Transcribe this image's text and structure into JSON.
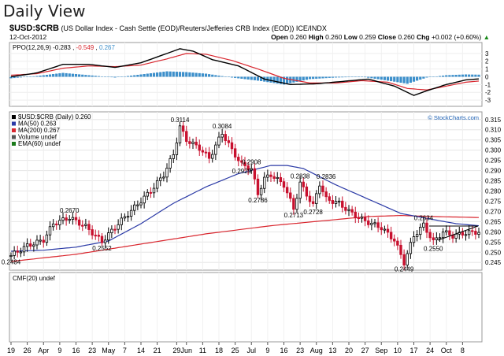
{
  "header": {
    "view_title": "Daily View",
    "symbol": "$USD:$CRB",
    "description": "(US Dollar Index - Cash Settle (EOD)/Reuters/Jefferies CRB Index (EOD)) ICE/INDX",
    "date": "12-Oct-2012",
    "quote": {
      "open_label": "Open",
      "open": "0.260",
      "high_label": "High",
      "high": "0.260",
      "low_label": "Low",
      "low": "0.259",
      "close_label": "Close",
      "close": "0.260",
      "chg_label": "Chg",
      "chg": "+0.002 (+0.60%)",
      "chg_arrow": "▲"
    },
    "credit": "© StockCharts.com"
  },
  "ppo_panel": {
    "label_prefix": "PPO(12,26,9)",
    "v1": "-0.283",
    "v2": "-0.549",
    "v3": "0.267",
    "colors": {
      "ppo": "#000000",
      "signal": "#d9262e",
      "hist": "#3c8fcb"
    }
  },
  "cmf_panel": {
    "label": "CMF(20) undef"
  },
  "legend": [
    {
      "text": "$USD:$CRB (Daily) 0.260",
      "color": "#000000"
    },
    {
      "text": "MA(50) 0.263",
      "color": "#2b3aa6"
    },
    {
      "text": "MA(200) 0.267",
      "color": "#d9262e"
    },
    {
      "text": "Volume undef",
      "color": "#555555"
    },
    {
      "text": "EMA(60) undef",
      "color": "#1a7a1a"
    }
  ],
  "chart_data": {
    "type": "line",
    "title": "Daily View",
    "ylim": [
      0.242,
      0.318
    ],
    "y_ticks": [
      0.245,
      0.25,
      0.255,
      0.26,
      0.265,
      0.27,
      0.275,
      0.28,
      0.285,
      0.29,
      0.295,
      0.3,
      0.305,
      0.31,
      0.315
    ],
    "x_tick_labels": [
      "19",
      "26",
      "Apr",
      "9",
      "16",
      "23",
      "May",
      "7",
      "14",
      "21",
      "29",
      "Jun",
      "11",
      "18",
      "25",
      "Jul",
      "9",
      "16",
      "23",
      "Aug",
      "13",
      "20",
      "27",
      "Sep",
      "10",
      "17",
      "24",
      "Oct",
      "8"
    ],
    "x_tick_positions": [
      0,
      5,
      10,
      15,
      20,
      25,
      30,
      35,
      40,
      45,
      51,
      54,
      59,
      64,
      69,
      74,
      79,
      84,
      89,
      94,
      99,
      104,
      109,
      114,
      119,
      124,
      129,
      134,
      139
    ],
    "n_bars": 145,
    "series": [
      {
        "name": "$USD:$CRB (Daily) 0.260",
        "color": "#000000",
        "x": [
          0,
          5,
          10,
          13,
          18,
          23,
          28,
          33,
          38,
          43,
          47,
          50,
          52,
          54,
          58,
          61,
          65,
          68,
          71,
          74,
          76,
          78,
          80,
          84,
          87,
          89,
          93,
          95,
          97,
          101,
          104,
          108,
          111,
          114,
          118,
          121,
          124,
          127,
          130,
          133,
          136,
          140,
          144
        ],
        "values": [
          0.2484,
          0.2532,
          0.256,
          0.264,
          0.267,
          0.2625,
          0.2552,
          0.264,
          0.272,
          0.28,
          0.288,
          0.298,
          0.3114,
          0.305,
          0.301,
          0.296,
          0.3084,
          0.3,
          0.2929,
          0.2908,
          0.2786,
          0.286,
          0.288,
          0.283,
          0.2713,
          0.2838,
          0.2728,
          0.2836,
          0.276,
          0.274,
          0.27,
          0.266,
          0.264,
          0.262,
          0.256,
          0.2449,
          0.258,
          0.2634,
          0.255,
          0.26,
          0.258,
          0.2595,
          0.26
        ]
      },
      {
        "name": "MA(50) 0.263",
        "color": "#2b3aa6",
        "x": [
          0,
          10,
          20,
          30,
          40,
          50,
          60,
          70,
          80,
          85,
          90,
          100,
          110,
          120,
          130,
          137,
          144
        ],
        "values": [
          0.2505,
          0.251,
          0.2525,
          0.2555,
          0.264,
          0.274,
          0.282,
          0.2885,
          0.2925,
          0.2925,
          0.291,
          0.283,
          0.276,
          0.269,
          0.266,
          0.264,
          0.263
        ]
      },
      {
        "name": "MA(200) 0.267",
        "color": "#d9262e",
        "x": [
          0,
          20,
          40,
          60,
          80,
          100,
          110,
          120,
          130,
          144
        ],
        "values": [
          0.2455,
          0.249,
          0.254,
          0.259,
          0.263,
          0.266,
          0.2675,
          0.268,
          0.2675,
          0.267
        ]
      }
    ],
    "annotations": [
      {
        "text": "0.2484",
        "x": 0,
        "y": 0.2484
      },
      {
        "text": "0.2670",
        "x": 18,
        "y": 0.267
      },
      {
        "text": "0.2552",
        "x": 28,
        "y": 0.2552
      },
      {
        "text": "0.3114",
        "x": 52,
        "y": 0.3114
      },
      {
        "text": "0.3084",
        "x": 65,
        "y": 0.3084
      },
      {
        "text": "0.2929",
        "x": 71,
        "y": 0.2929
      },
      {
        "text": "0.2908",
        "x": 74,
        "y": 0.2908
      },
      {
        "text": "0.2786",
        "x": 76,
        "y": 0.2786
      },
      {
        "text": "0.2838",
        "x": 89,
        "y": 0.2838
      },
      {
        "text": "0.2836",
        "x": 97,
        "y": 0.2836
      },
      {
        "text": "0.2713",
        "x": 87,
        "y": 0.2713
      },
      {
        "text": "0.2728",
        "x": 93,
        "y": 0.2728
      },
      {
        "text": "0.2449",
        "x": 121,
        "y": 0.2449
      },
      {
        "text": "0.2634",
        "x": 127,
        "y": 0.2634
      },
      {
        "text": "0.2550",
        "x": 130,
        "y": 0.255
      }
    ]
  },
  "ppo_chart_data": {
    "type": "line",
    "ylim": [
      -3.5,
      4
    ],
    "y_ticks": [
      3,
      2,
      1,
      0,
      -1,
      -2,
      -3
    ],
    "series": [
      {
        "name": "PPO",
        "x": [
          0,
          8,
          16,
          24,
          32,
          40,
          48,
          52,
          56,
          62,
          70,
          78,
          86,
          94,
          102,
          110,
          118,
          124,
          128,
          134,
          140,
          144
        ],
        "values": [
          0.0,
          0.5,
          1.6,
          1.6,
          1.2,
          1.8,
          3.0,
          3.6,
          3.3,
          2.2,
          1.4,
          -0.3,
          -1.0,
          -0.9,
          -0.6,
          -0.3,
          -1.2,
          -2.4,
          -1.8,
          -1.0,
          -0.4,
          -0.28
        ]
      },
      {
        "name": "Signal",
        "x": [
          0,
          8,
          16,
          24,
          32,
          40,
          48,
          54,
          60,
          68,
          76,
          84,
          92,
          100,
          108,
          116,
          122,
          128,
          134,
          140,
          144
        ],
        "values": [
          0.2,
          0.4,
          1.1,
          1.4,
          1.3,
          1.5,
          2.3,
          3.0,
          2.9,
          2.1,
          1.0,
          -0.2,
          -0.8,
          -0.8,
          -0.5,
          -0.7,
          -1.5,
          -1.7,
          -1.2,
          -0.7,
          -0.55
        ]
      },
      {
        "name": "Histogram",
        "x": [
          0,
          8,
          16,
          24,
          32,
          40,
          48,
          54,
          60,
          68,
          76,
          84,
          92,
          100,
          108,
          116,
          122,
          128,
          134,
          140,
          144
        ],
        "values": [
          -0.2,
          0.1,
          0.5,
          0.2,
          -0.1,
          0.3,
          0.7,
          0.6,
          0.4,
          -0.1,
          -0.5,
          -1.0,
          -0.3,
          -0.1,
          0.0,
          -0.5,
          -0.9,
          -0.1,
          0.2,
          0.3,
          0.27
        ]
      }
    ]
  }
}
